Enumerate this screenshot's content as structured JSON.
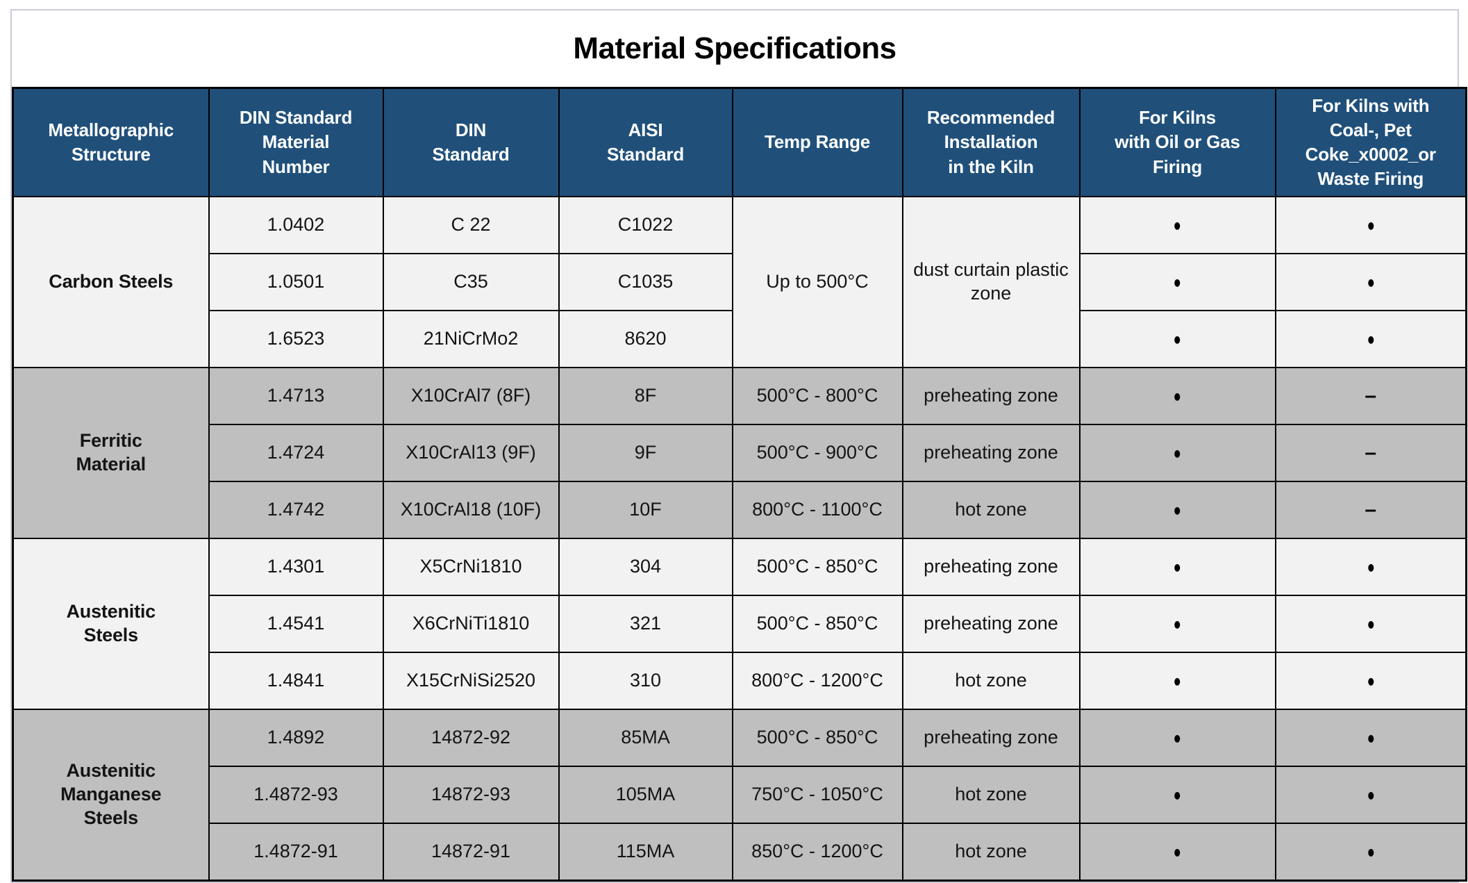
{
  "title": "Material Specifications",
  "colors": {
    "header_bg": "#20507A",
    "header_text": "#FFFFFF",
    "row_light": "#F2F2F2",
    "row_dark": "#BFBFBF",
    "grid": "#000000",
    "card_border": "#CACCD6",
    "text": "#141414"
  },
  "symbols": {
    "present": "●",
    "absent": "–"
  },
  "table": {
    "columns": [
      "Metallographic\nStructure",
      "DIN Standard\nMaterial\nNumber",
      "DIN\nStandard",
      "AISI\nStandard",
      "Temp Range",
      "Recommended\nInstallation\nin the Kiln",
      "For Kilns\nwith Oil or Gas\nFiring",
      "For Kilns with\nCoal-, Pet\nCoke_x0002_or\nWaste Firing"
    ],
    "groups": [
      {
        "name": "Carbon Steels",
        "shade": "light",
        "temp": "Up to 500°C",
        "install": "dust curtain plastic zone",
        "rows": [
          {
            "din_number": "1.0402",
            "din": "C 22",
            "aisi": "C1022",
            "oil_gas": "●",
            "coal": "●"
          },
          {
            "din_number": "1.0501",
            "din": "C35",
            "aisi": "C1035",
            "oil_gas": "●",
            "coal": "●"
          },
          {
            "din_number": "1.6523",
            "din": "21NiCrMo2",
            "aisi": "8620",
            "oil_gas": "●",
            "coal": "●"
          }
        ]
      },
      {
        "name": "Ferritic\nMaterial",
        "shade": "dark",
        "rows": [
          {
            "din_number": "1.4713",
            "din": "X10CrAl7 (8F)",
            "aisi": "8F",
            "temp": "500°C - 800°C",
            "install": "preheating zone",
            "oil_gas": "●",
            "coal": "–"
          },
          {
            "din_number": "1.4724",
            "din": "X10CrAl13 (9F)",
            "aisi": "9F",
            "temp": "500°C - 900°C",
            "install": "preheating zone",
            "oil_gas": "●",
            "coal": "–"
          },
          {
            "din_number": "1.4742",
            "din": "X10CrAl18 (10F)",
            "aisi": "10F",
            "temp": "800°C - 1100°C",
            "install": "hot zone",
            "oil_gas": "●",
            "coal": "–"
          }
        ]
      },
      {
        "name": "Austenitic\nSteels",
        "shade": "light",
        "rows": [
          {
            "din_number": "1.4301",
            "din": "X5CrNi1810",
            "aisi": "304",
            "temp": "500°C - 850°C",
            "install": "preheating zone",
            "oil_gas": "●",
            "coal": "●"
          },
          {
            "din_number": "1.4541",
            "din": "X6CrNiTi1810",
            "aisi": "321",
            "temp": "500°C - 850°C",
            "install": "preheating zone",
            "oil_gas": "●",
            "coal": "●"
          },
          {
            "din_number": "1.4841",
            "din": "X15CrNiSi2520",
            "aisi": "310",
            "temp": "800°C - 1200°C",
            "install": "hot zone",
            "oil_gas": "●",
            "coal": "●"
          }
        ]
      },
      {
        "name": "Austenitic\nManganese\nSteels",
        "shade": "dark",
        "rows": [
          {
            "din_number": "1.4892",
            "din": "14872-92",
            "aisi": "85MA",
            "temp": "500°C - 850°C",
            "install": "preheating zone",
            "oil_gas": "●",
            "coal": "●"
          },
          {
            "din_number": "1.4872-93",
            "din": "14872-93",
            "aisi": "105MA",
            "temp": "750°C - 1050°C",
            "install": "hot zone",
            "oil_gas": "●",
            "coal": "●"
          },
          {
            "din_number": "1.4872-91",
            "din": "14872-91",
            "aisi": "115MA",
            "temp": "850°C - 1200°C",
            "install": "hot zone",
            "oil_gas": "●",
            "coal": "●"
          }
        ]
      }
    ]
  }
}
